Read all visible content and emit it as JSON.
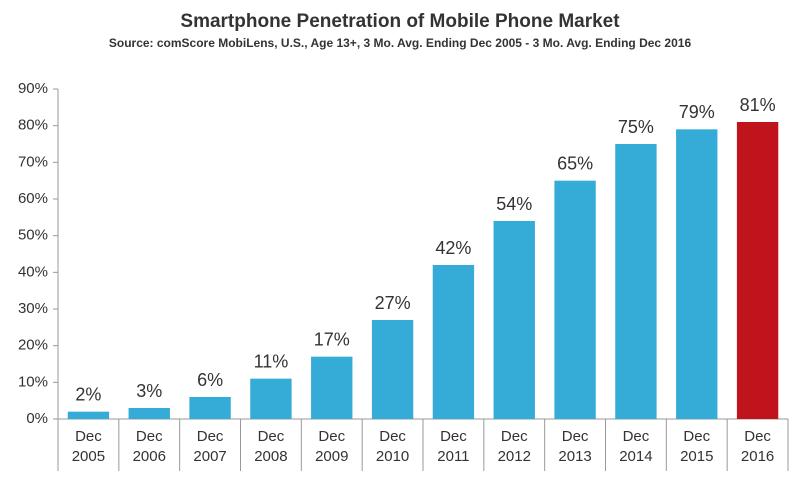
{
  "chart_data": {
    "type": "bar",
    "title": "Smartphone Penetration of Mobile Phone Market",
    "subtitle": "Source: comScore MobiLens, U.S., Age 13+, 3 Mo. Avg. Ending Dec 2005 - 3 Mo. Avg. Ending Dec 2016",
    "categories": [
      "Dec 2005",
      "Dec 2006",
      "Dec 2007",
      "Dec 2008",
      "Dec 2009",
      "Dec 2010",
      "Dec 2011",
      "Dec 2012",
      "Dec 2013",
      "Dec 2014",
      "Dec 2015",
      "Dec 2016"
    ],
    "values": [
      2,
      3,
      6,
      11,
      17,
      27,
      42,
      54,
      65,
      75,
      79,
      81
    ],
    "value_labels": [
      "2%",
      "3%",
      "6%",
      "11%",
      "17%",
      "27%",
      "42%",
      "54%",
      "65%",
      "75%",
      "79%",
      "81%"
    ],
    "colors": [
      "#35acd8",
      "#35acd8",
      "#35acd8",
      "#35acd8",
      "#35acd8",
      "#35acd8",
      "#35acd8",
      "#35acd8",
      "#35acd8",
      "#35acd8",
      "#35acd8",
      "#c0141d"
    ],
    "ylim": [
      0,
      90
    ],
    "yticks": [
      {
        "value": 0,
        "label": "0%"
      },
      {
        "value": 10,
        "label": "10%"
      },
      {
        "value": 20,
        "label": "20%"
      },
      {
        "value": 30,
        "label": "30%"
      },
      {
        "value": 40,
        "label": "40%"
      },
      {
        "value": 50,
        "label": "50%"
      },
      {
        "value": 60,
        "label": "60%"
      },
      {
        "value": 70,
        "label": "70%"
      },
      {
        "value": 80,
        "label": "80%"
      },
      {
        "value": 90,
        "label": "90%"
      }
    ],
    "grid": false
  }
}
